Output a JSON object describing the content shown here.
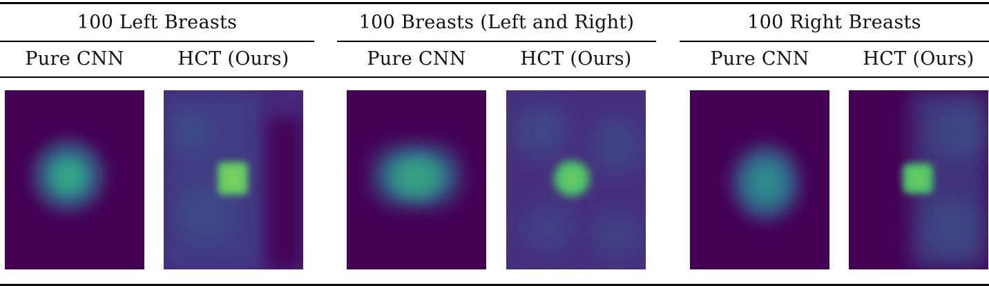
{
  "groups": [
    {
      "title": "100 Left Breasts",
      "columns": [
        {
          "label": "Pure CNN",
          "map": "diffuse-blob"
        },
        {
          "label": "HCT (Ours)",
          "map": "focused-spot"
        }
      ]
    },
    {
      "title": "100 Breasts (Left and Right)",
      "columns": [
        {
          "label": "Pure CNN",
          "map": "diffuse-blob"
        },
        {
          "label": "HCT (Ours)",
          "map": "focused-spot"
        }
      ]
    },
    {
      "title": "100 Right Breasts",
      "columns": [
        {
          "label": "Pure CNN",
          "map": "diffuse-blob"
        },
        {
          "label": "HCT (Ours)",
          "map": "focused-spot"
        }
      ]
    }
  ],
  "colors": {
    "heatmap_background": "#440154",
    "heatmap_low": "#3b528b",
    "heatmap_mid": "#21918c",
    "heatmap_high": "#5ec962",
    "rule": "#000000"
  }
}
